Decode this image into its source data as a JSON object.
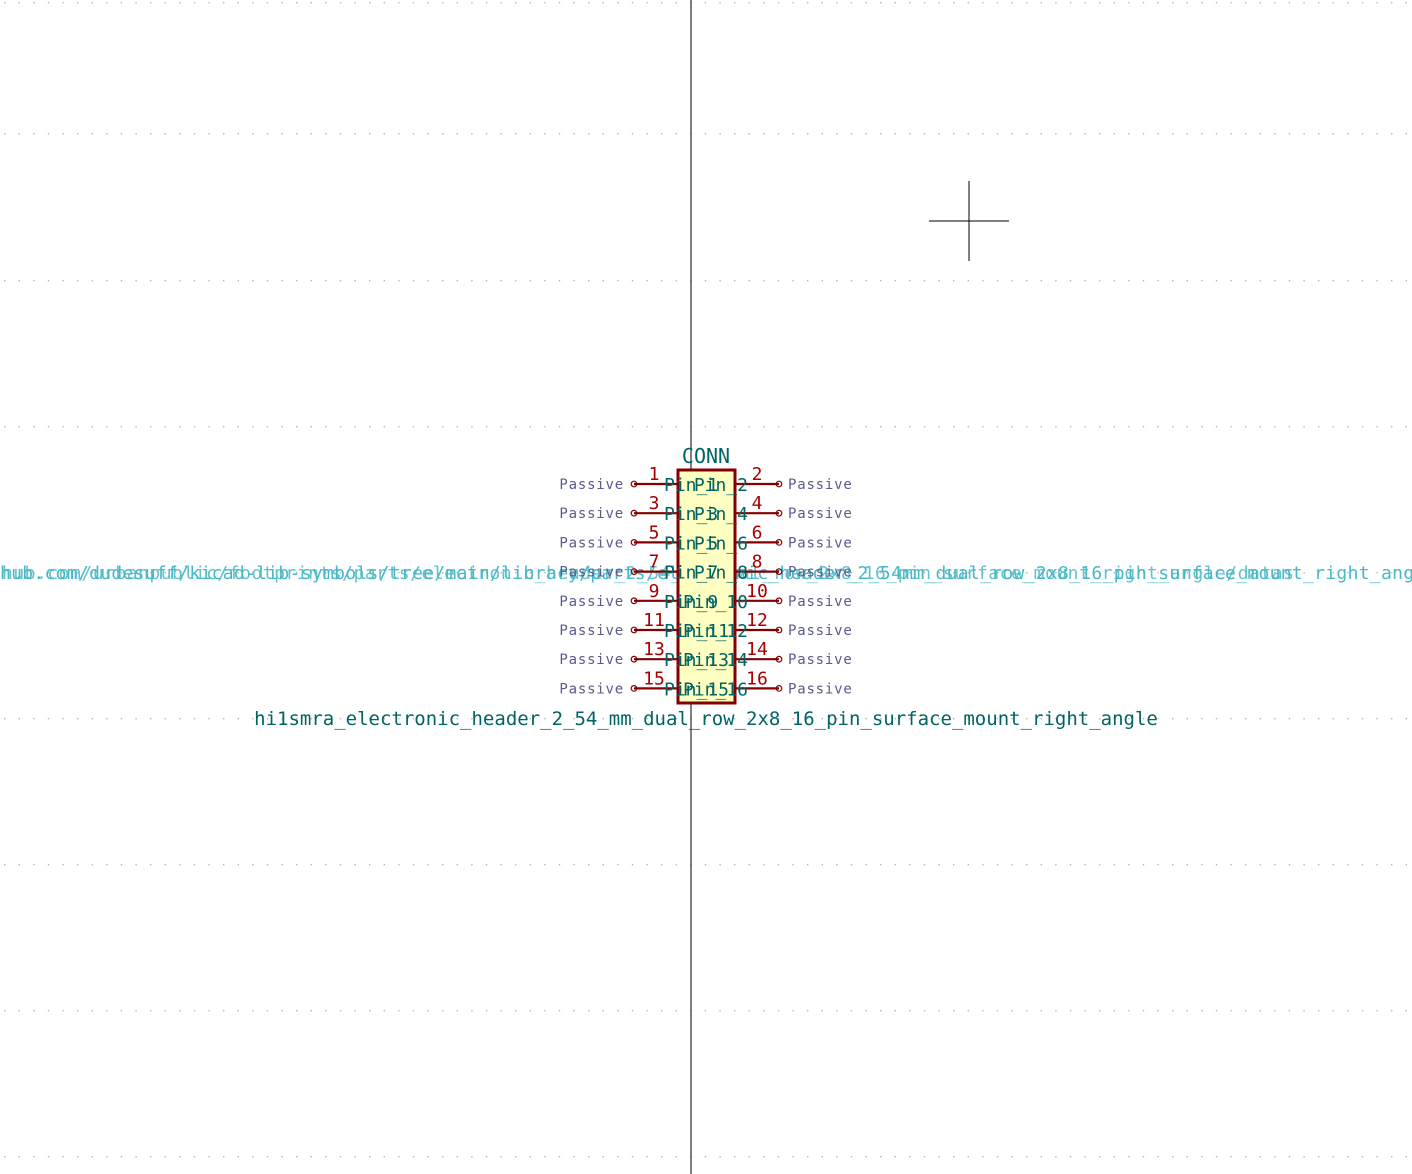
{
  "symbol": {
    "reference": "CONN",
    "value": "hi1smra_electronic_header_2_54_mm_dual_row_2x8_16_pin_surface_mount_right_angle",
    "datasheet_fragment": "hub.com/dudesuff/kicad-lib-symbols/tree/main/library/parts/electronic_header_2_54mm_dual_row_2x8_16_pin_surface_mount_right_angle/datas",
    "datasheet_overlap": "hub.com/urbanpublic/footprints/parts/electronic_header_2_54_mm_dual_row_2x8_16_pin_surface_mount_right_angle/datas"
  },
  "pins": [
    {
      "number": "1",
      "name": "Pin_1",
      "type": "Passive",
      "side": "left",
      "row": 0
    },
    {
      "number": "2",
      "name": "Pin_2",
      "type": "Passive",
      "side": "right",
      "row": 0
    },
    {
      "number": "3",
      "name": "Pin_3",
      "type": "Passive",
      "side": "left",
      "row": 1
    },
    {
      "number": "4",
      "name": "Pin_4",
      "type": "Passive",
      "side": "right",
      "row": 1
    },
    {
      "number": "5",
      "name": "Pin_5",
      "type": "Passive",
      "side": "left",
      "row": 2
    },
    {
      "number": "6",
      "name": "Pin_6",
      "type": "Passive",
      "side": "right",
      "row": 2
    },
    {
      "number": "7",
      "name": "Pin_7",
      "type": "Passive",
      "side": "left",
      "row": 3
    },
    {
      "number": "8",
      "name": "Pin_8",
      "type": "Passive",
      "side": "right",
      "row": 3
    },
    {
      "number": "9",
      "name": "Pin_9",
      "type": "Passive",
      "side": "left",
      "row": 4
    },
    {
      "number": "10",
      "name": "Pin_10",
      "type": "Passive",
      "side": "right",
      "row": 4
    },
    {
      "number": "11",
      "name": "Pin_11",
      "type": "Passive",
      "side": "left",
      "row": 5
    },
    {
      "number": "12",
      "name": "Pin_12",
      "type": "Passive",
      "side": "right",
      "row": 5
    },
    {
      "number": "13",
      "name": "Pin_13",
      "type": "Passive",
      "side": "left",
      "row": 6
    },
    {
      "number": "14",
      "name": "Pin_14",
      "type": "Passive",
      "side": "right",
      "row": 6
    },
    {
      "number": "15",
      "name": "Pin_15",
      "type": "Passive",
      "side": "left",
      "row": 7
    },
    {
      "number": "16",
      "name": "Pin_16",
      "type": "Passive",
      "side": "right",
      "row": 7
    }
  ],
  "colors": {
    "background": "#ffffff",
    "grid_dot": "#b4b4b4",
    "body_fill": "#ffffc2",
    "body_stroke": "#840000",
    "pin_line": "#840000",
    "pin_number": "#a90000",
    "pin_name": "#006464",
    "pin_type": "#5a5a8c",
    "reference": "#006464",
    "value": "#006464",
    "datasheet": "#48b8c8",
    "axis": "#000000",
    "cursor": "#000000"
  }
}
